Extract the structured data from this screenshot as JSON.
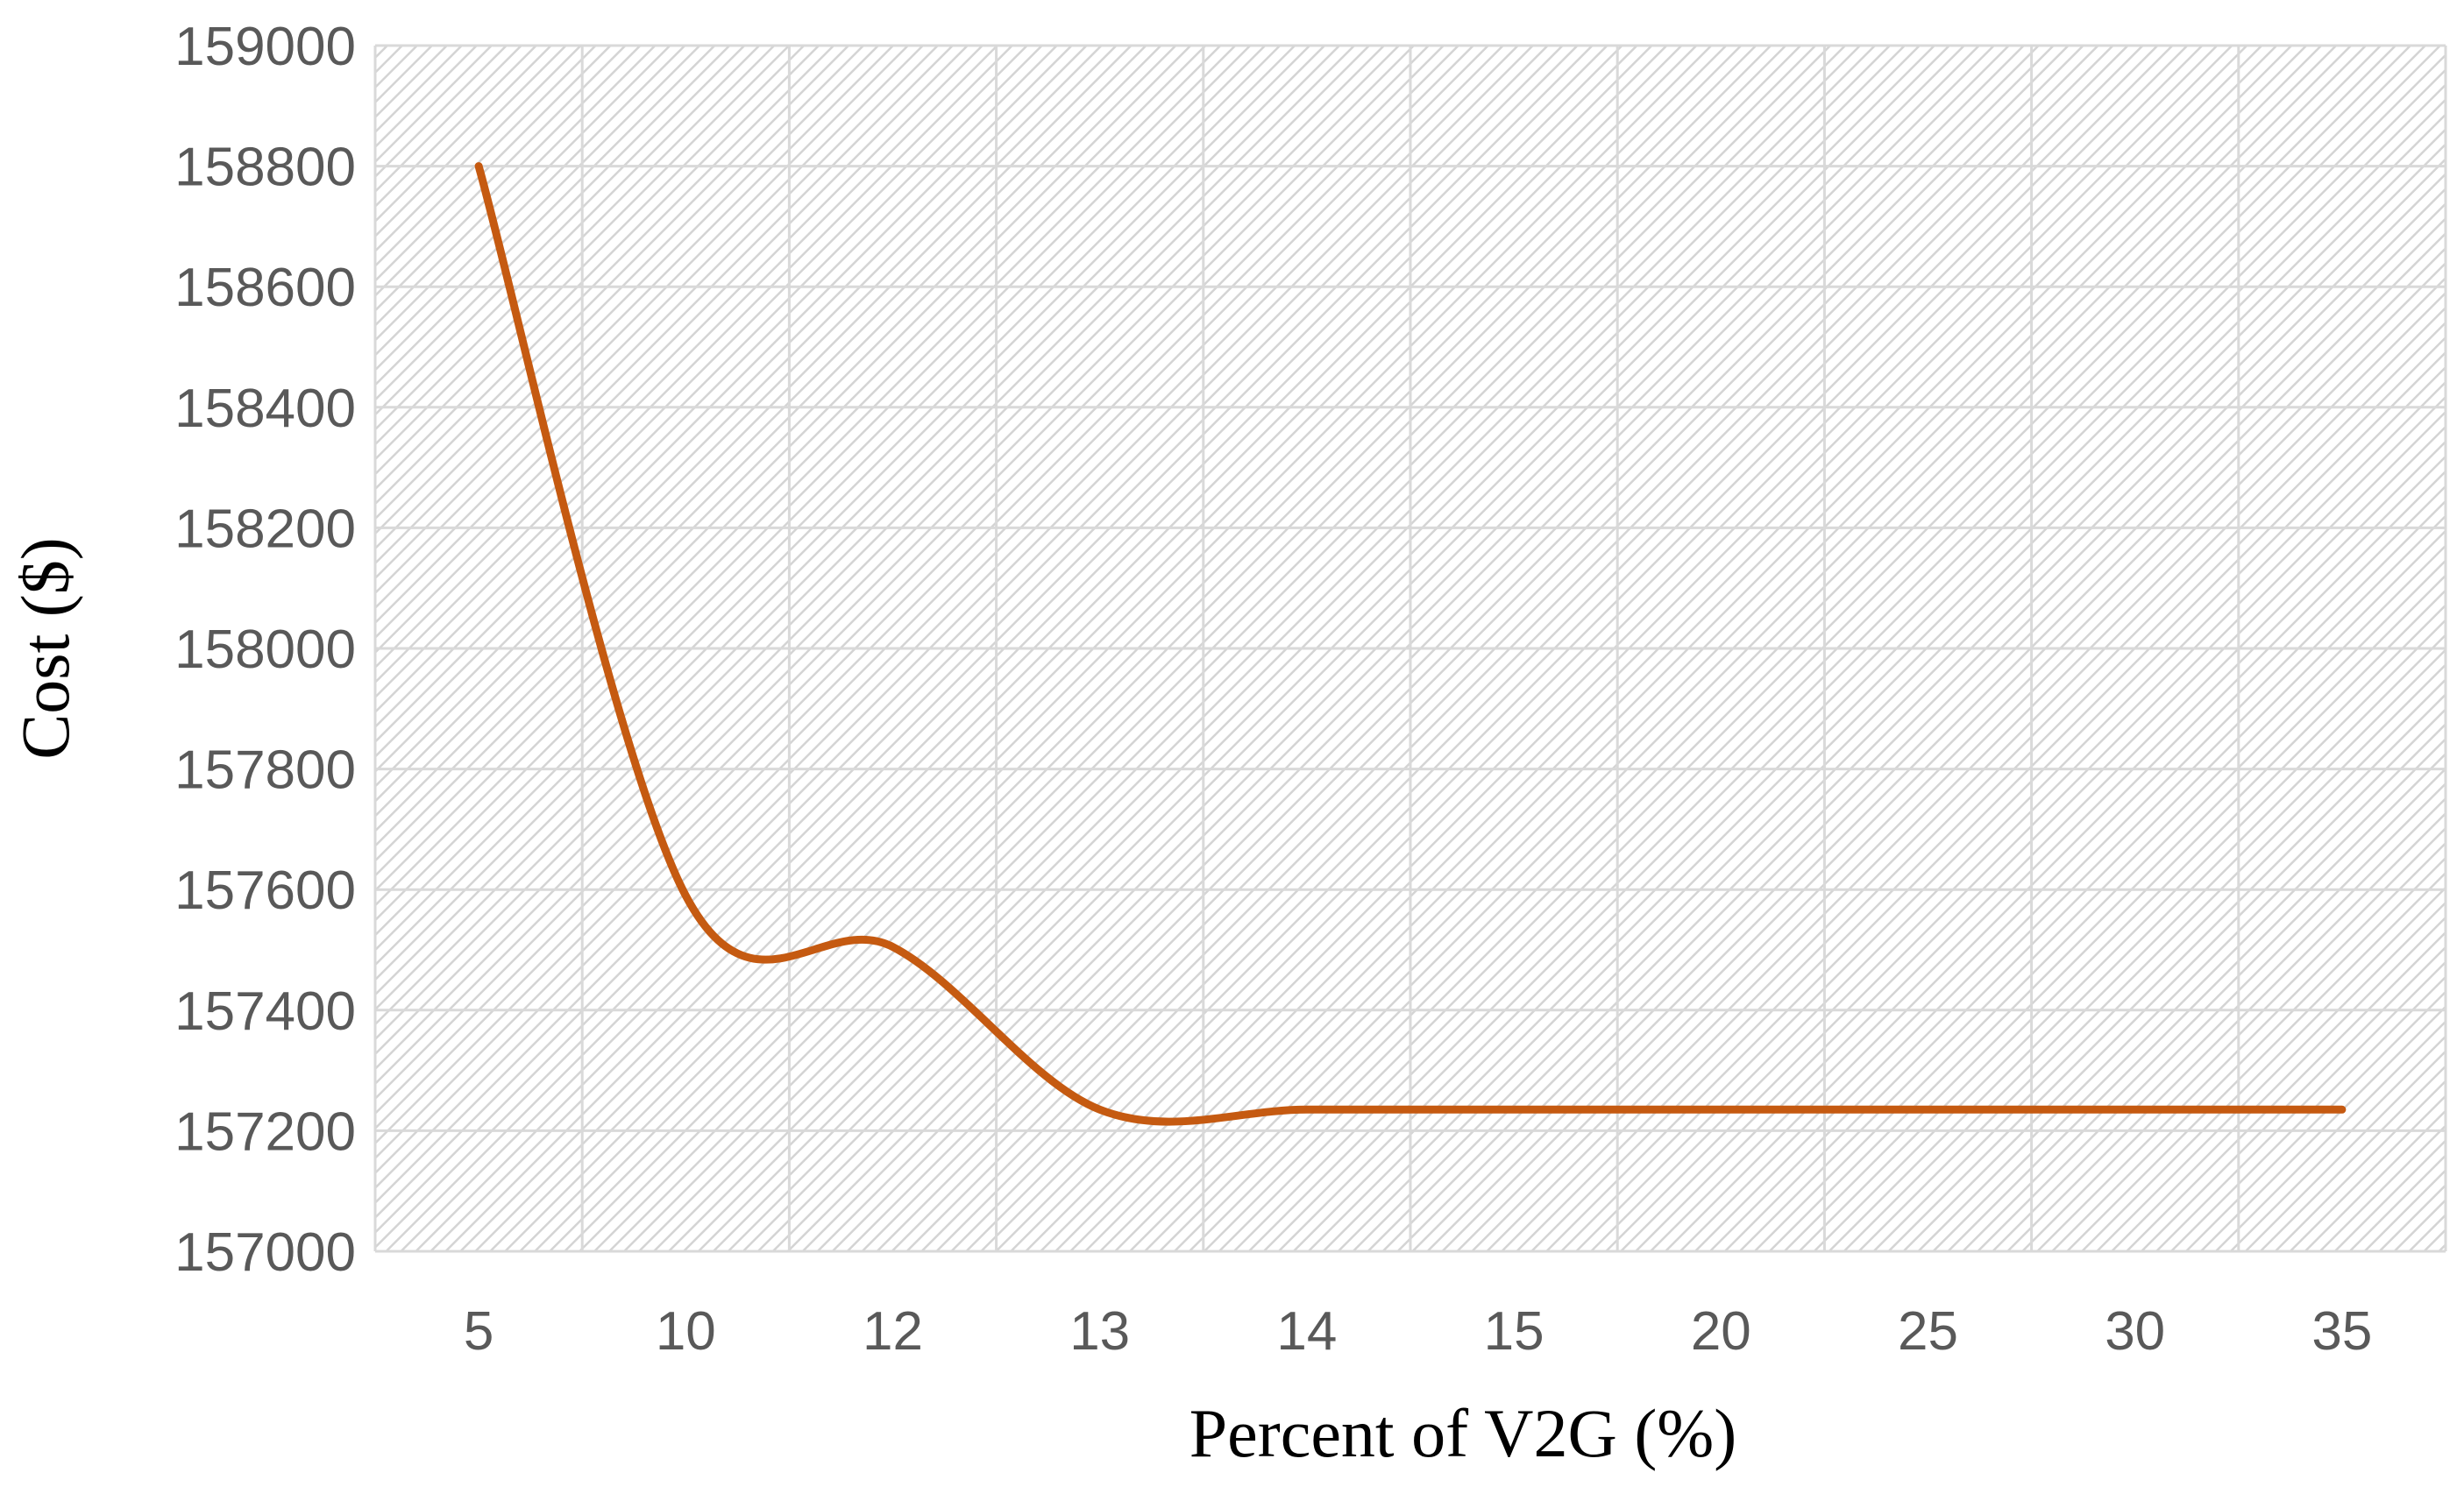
{
  "chart_data": {
    "type": "line",
    "title": "",
    "xlabel": "Percent of V2G (%)",
    "ylabel": "Cost ($)",
    "categories": [
      "5",
      "10",
      "12",
      "13",
      "14",
      "15",
      "20",
      "25",
      "30",
      "35"
    ],
    "series": [
      {
        "name": "Cost",
        "values": [
          158800,
          157590,
          157505,
          157235,
          157235,
          157235,
          157235,
          157235,
          157235,
          157235
        ]
      }
    ],
    "ylim": [
      157000,
      159000
    ],
    "yticks": [
      157000,
      157200,
      157400,
      157600,
      157800,
      158000,
      158200,
      158400,
      158600,
      158800,
      159000
    ],
    "smooth": true,
    "grid": true,
    "legend": "none"
  },
  "colors": {
    "series_line": "#C55A11",
    "gridline": "#D9D9D9",
    "hatch": "#D4D4D4",
    "tick_text": "#595959",
    "axis_title": "#000000"
  }
}
